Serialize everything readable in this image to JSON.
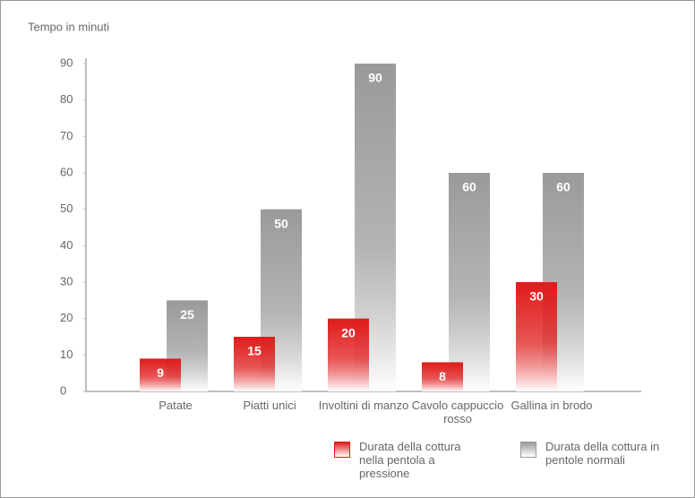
{
  "chart_data": {
    "type": "bar",
    "y_label": "Tempo in minuti",
    "categories": [
      "Patate",
      "Piatti unici",
      "Involtini di manzo",
      "Cavolo cappuccio rosso",
      "Gallina in brodo"
    ],
    "series": [
      {
        "name": "Durata della cottura in pentole normali",
        "color": "#9a9a9a",
        "values": [
          25,
          50,
          90,
          60,
          60
        ]
      },
      {
        "name": "Durata della cottura nella pentola a pressione",
        "color": "#e01b1b",
        "values": [
          9,
          15,
          20,
          8,
          30
        ]
      }
    ],
    "ylim": [
      0,
      90
    ],
    "yticks": [
      0,
      10,
      20,
      30,
      40,
      50,
      60,
      70,
      80,
      90
    ]
  }
}
